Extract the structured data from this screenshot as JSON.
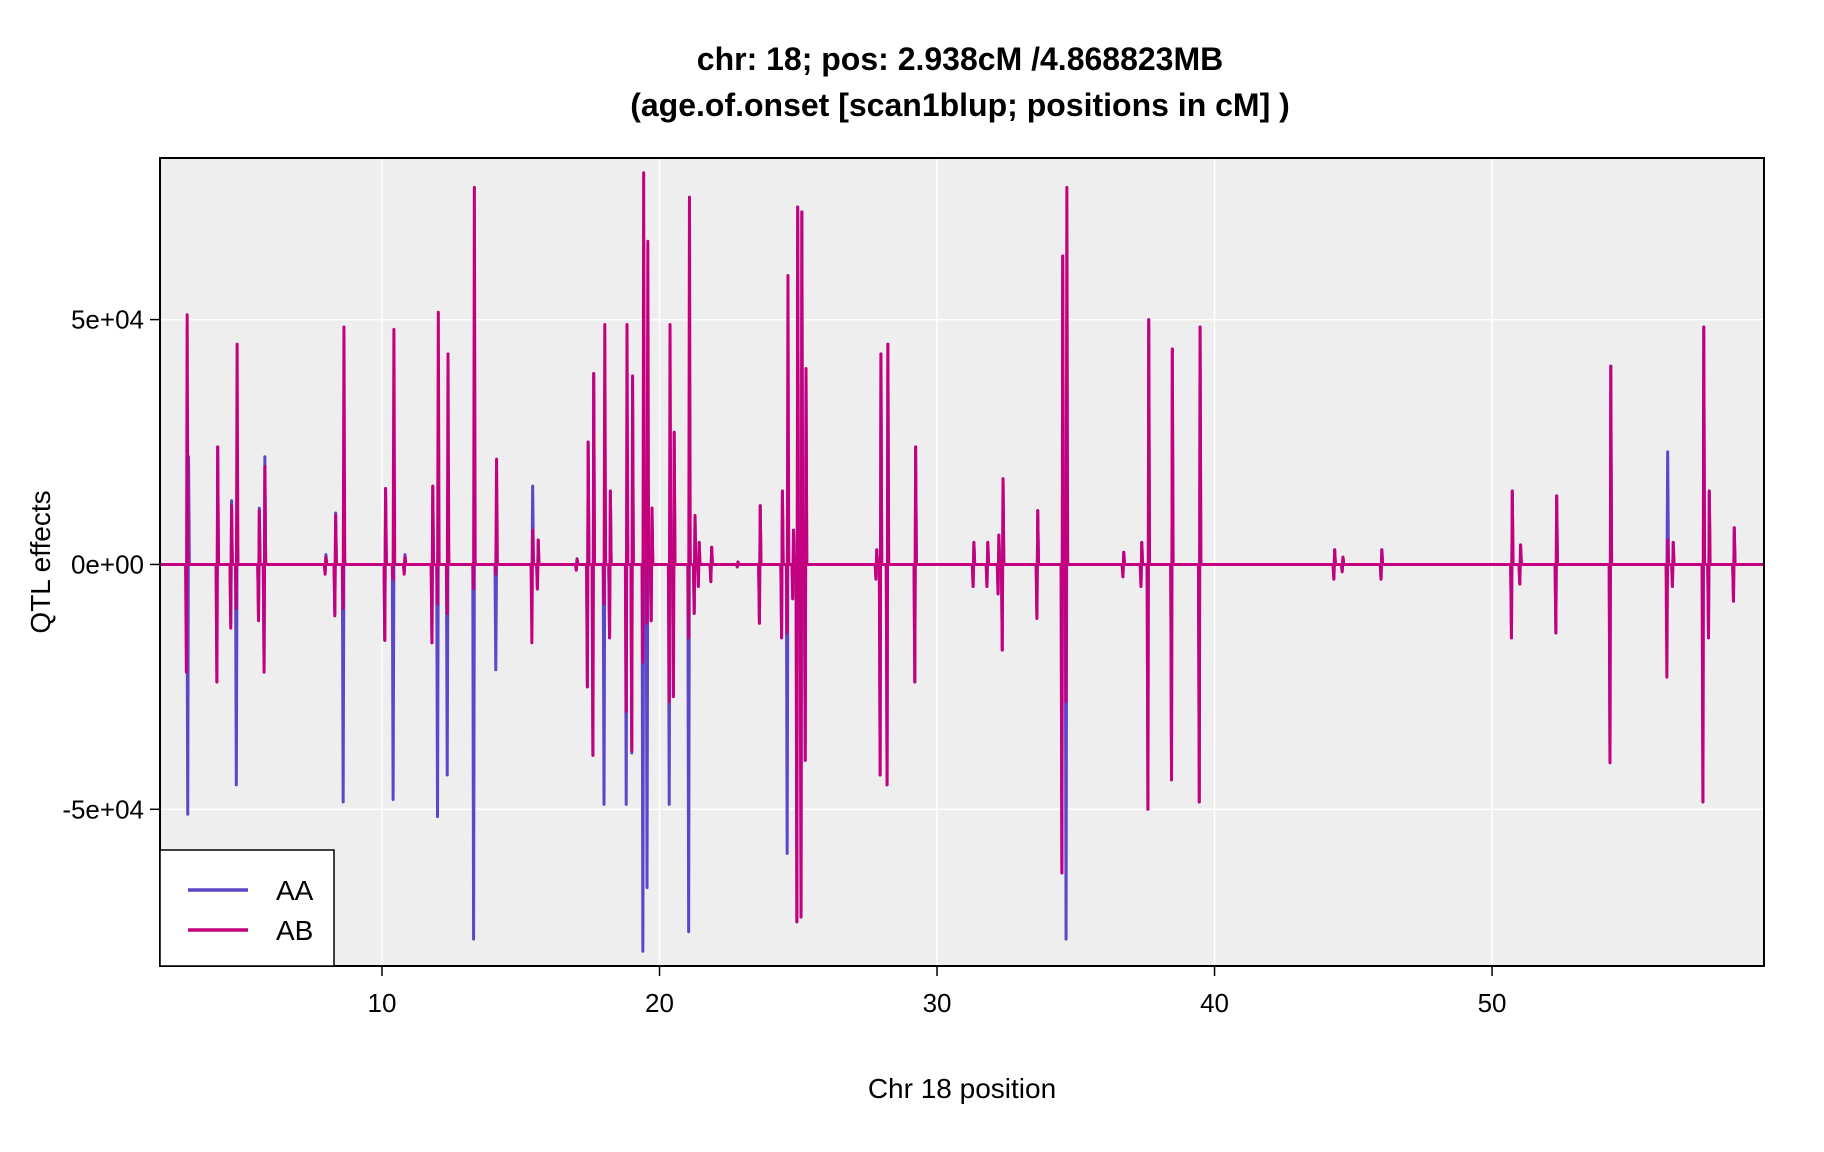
{
  "chart_data": {
    "type": "line",
    "title_line1": "chr: 18; pos: 2.938cM /4.868823MB",
    "title_line2": "(age.of.onset [scan1blup; positions in cM] )",
    "xlabel": "Chr 18 position",
    "ylabel": "QTL effects",
    "xlim": [
      2,
      59.8
    ],
    "ylim": [
      -82000,
      83000
    ],
    "x_ticks": [
      10,
      20,
      30,
      40,
      50
    ],
    "x_tick_labels": [
      "10",
      "20",
      "30",
      "40",
      "50"
    ],
    "y_ticks": [
      -50000,
      0,
      50000
    ],
    "y_tick_labels": [
      "-5e+04",
      "0e+00",
      "5e+04"
    ],
    "grid": true,
    "legend_position": "bottom-left",
    "colors": {
      "AA": "#5b47c9",
      "AB": "#c4007f",
      "panel_bg": "#eeeeee",
      "grid": "#ffffff"
    },
    "series": [
      {
        "name": "AA",
        "peaks": [
          [
            3.0,
            -51000,
            22000
          ],
          [
            4.05,
            -24000,
            24000
          ],
          [
            4.55,
            -12000,
            13000
          ],
          [
            4.75,
            -45000,
            9000
          ],
          [
            5.55,
            -11000,
            11500
          ],
          [
            5.75,
            -20000,
            22000
          ],
          [
            7.95,
            -1500,
            2000
          ],
          [
            8.3,
            -10000,
            10500
          ],
          [
            8.6,
            -48500,
            9000
          ],
          [
            10.1,
            -15500,
            15500
          ],
          [
            10.4,
            -48000,
            3000
          ],
          [
            10.8,
            -1500,
            2000
          ],
          [
            11.8,
            -16000,
            16000
          ],
          [
            12.0,
            -51500,
            8000
          ],
          [
            12.35,
            -43000,
            10000
          ],
          [
            13.3,
            -76500,
            5000
          ],
          [
            14.1,
            -21500,
            2000
          ],
          [
            15.4,
            -7000,
            16000
          ],
          [
            15.6,
            -5000,
            5000
          ],
          [
            17.0,
            -1000,
            1200
          ],
          [
            17.4,
            -25000,
            25000
          ],
          [
            17.6,
            -39000,
            39000
          ],
          [
            18.0,
            -49000,
            8000
          ],
          [
            18.2,
            -15000,
            15000
          ],
          [
            18.8,
            -49000,
            30000
          ],
          [
            19.0,
            -38500,
            38000
          ],
          [
            19.4,
            -79000,
            20000
          ],
          [
            19.55,
            -66000,
            12000
          ],
          [
            19.7,
            -11500,
            11500
          ],
          [
            20.35,
            -49000,
            28000
          ],
          [
            20.5,
            -27000,
            27000
          ],
          [
            21.05,
            -75000,
            15000
          ],
          [
            21.25,
            -10000,
            10000
          ],
          [
            21.4,
            -4500,
            4500
          ],
          [
            21.85,
            -3500,
            3500
          ],
          [
            22.8,
            -500,
            500
          ],
          [
            23.6,
            -12000,
            12000
          ],
          [
            24.4,
            -15000,
            15000
          ],
          [
            24.6,
            -59000,
            14000
          ],
          [
            24.8,
            -7000,
            7000
          ],
          [
            24.95,
            -73000,
            73000
          ],
          [
            25.1,
            -72000,
            72000
          ],
          [
            25.25,
            -40000,
            40000
          ],
          [
            27.8,
            -3000,
            3000
          ],
          [
            27.95,
            -43000,
            43000
          ],
          [
            28.2,
            -45000,
            45000
          ],
          [
            29.2,
            -24000,
            24000
          ],
          [
            31.3,
            -4500,
            4500
          ],
          [
            31.8,
            -4500,
            4500
          ],
          [
            32.2,
            -6000,
            6000
          ],
          [
            32.35,
            -17500,
            17500
          ],
          [
            33.6,
            -11000,
            11000
          ],
          [
            34.5,
            -63000,
            63000
          ],
          [
            34.65,
            -76500,
            28000
          ],
          [
            36.7,
            -2500,
            2500
          ],
          [
            37.35,
            -4500,
            4500
          ],
          [
            37.6,
            -50000,
            50000
          ],
          [
            38.45,
            -44000,
            44000
          ],
          [
            39.45,
            -48500,
            48500
          ],
          [
            44.3,
            -3000,
            3000
          ],
          [
            44.6,
            -1500,
            1500
          ],
          [
            46.0,
            -3000,
            3000
          ],
          [
            50.7,
            -15000,
            15000
          ],
          [
            51.0,
            -4000,
            4000
          ],
          [
            52.3,
            -14000,
            14000
          ],
          [
            54.25,
            -40500,
            40500
          ],
          [
            56.3,
            -5000,
            23000
          ],
          [
            56.5,
            -4500,
            4500
          ],
          [
            57.6,
            -48500,
            48500
          ],
          [
            57.8,
            -15000,
            15000
          ],
          [
            58.7,
            -7500,
            7500
          ]
        ]
      },
      {
        "name": "AB",
        "peaks": [
          [
            2.95,
            -22000,
            51000
          ],
          [
            4.05,
            -24000,
            24000
          ],
          [
            4.55,
            -13000,
            12000
          ],
          [
            4.75,
            -9000,
            45000
          ],
          [
            5.55,
            -11500,
            11000
          ],
          [
            5.75,
            -22000,
            20000
          ],
          [
            7.95,
            -2000,
            1500
          ],
          [
            8.3,
            -10500,
            10000
          ],
          [
            8.6,
            -9000,
            48500
          ],
          [
            10.1,
            -15500,
            15500
          ],
          [
            10.4,
            -3000,
            48000
          ],
          [
            10.8,
            -2000,
            1500
          ],
          [
            11.8,
            -16000,
            16000
          ],
          [
            12.0,
            -8000,
            51500
          ],
          [
            12.35,
            -10000,
            43000
          ],
          [
            13.3,
            -5000,
            77000
          ],
          [
            14.1,
            -2000,
            21500
          ],
          [
            15.4,
            -16000,
            7000
          ],
          [
            15.6,
            -5000,
            5000
          ],
          [
            17.0,
            -1200,
            1000
          ],
          [
            17.4,
            -25000,
            25000
          ],
          [
            17.6,
            -39000,
            39000
          ],
          [
            18.0,
            -8000,
            49000
          ],
          [
            18.2,
            -15000,
            15000
          ],
          [
            18.8,
            -30000,
            49000
          ],
          [
            19.0,
            -38000,
            38500
          ],
          [
            19.4,
            -20000,
            80000
          ],
          [
            19.55,
            -12000,
            66000
          ],
          [
            19.7,
            -11500,
            11500
          ],
          [
            20.35,
            -28000,
            49000
          ],
          [
            20.5,
            -27000,
            27000
          ],
          [
            21.05,
            -15000,
            75000
          ],
          [
            21.25,
            -10000,
            10000
          ],
          [
            21.4,
            -4500,
            4500
          ],
          [
            21.85,
            -3500,
            3500
          ],
          [
            22.8,
            -500,
            500
          ],
          [
            23.6,
            -12000,
            12000
          ],
          [
            24.4,
            -15000,
            15000
          ],
          [
            24.6,
            -14000,
            59000
          ],
          [
            24.8,
            -7000,
            7000
          ],
          [
            24.95,
            -73000,
            73000
          ],
          [
            25.1,
            -72000,
            72000
          ],
          [
            25.25,
            -40000,
            40000
          ],
          [
            27.8,
            -3000,
            3000
          ],
          [
            27.95,
            -43000,
            43000
          ],
          [
            28.2,
            -45000,
            45000
          ],
          [
            29.2,
            -24000,
            24000
          ],
          [
            31.3,
            -4500,
            4500
          ],
          [
            31.8,
            -4500,
            4500
          ],
          [
            32.2,
            -6000,
            6000
          ],
          [
            32.35,
            -17500,
            17500
          ],
          [
            33.6,
            -11000,
            11000
          ],
          [
            34.5,
            -63000,
            63000
          ],
          [
            34.65,
            -28000,
            77000
          ],
          [
            36.7,
            -2500,
            2500
          ],
          [
            37.35,
            -4500,
            4500
          ],
          [
            37.6,
            -50000,
            50000
          ],
          [
            38.45,
            -44000,
            44000
          ],
          [
            39.45,
            -48500,
            48500
          ],
          [
            44.3,
            -3000,
            3000
          ],
          [
            44.6,
            -1500,
            1500
          ],
          [
            46.0,
            -3000,
            3000
          ],
          [
            50.7,
            -15000,
            15000
          ],
          [
            51.0,
            -4000,
            4000
          ],
          [
            52.3,
            -14000,
            14000
          ],
          [
            54.25,
            -40500,
            40500
          ],
          [
            56.3,
            -23000,
            5000
          ],
          [
            56.5,
            -4500,
            4500
          ],
          [
            57.6,
            -48500,
            48500
          ],
          [
            57.8,
            -15000,
            15000
          ],
          [
            58.7,
            -7500,
            7500
          ]
        ]
      }
    ]
  }
}
